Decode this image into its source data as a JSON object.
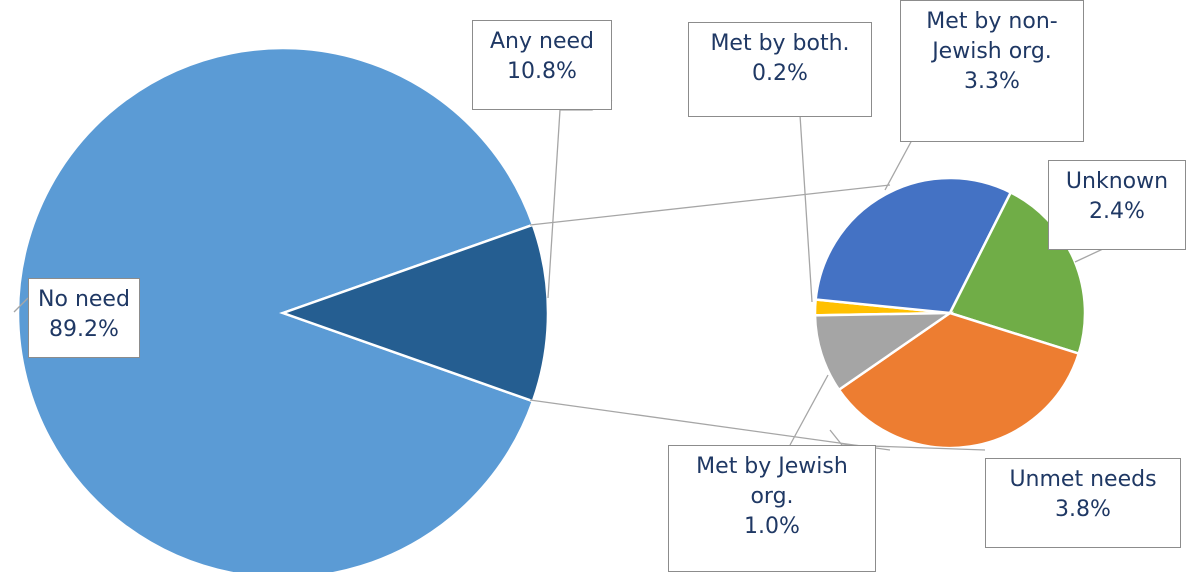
{
  "chart_data": [
    {
      "type": "pie",
      "categories": [
        "No need",
        "Any need"
      ],
      "values": [
        89.2,
        10.8
      ],
      "value_labels": [
        "89.2%",
        "10.8%"
      ],
      "colors": [
        "#5b9bd5",
        "#255e91"
      ]
    },
    {
      "type": "pie",
      "categories": [
        "Met by both.",
        "Met by non-Jewish org.",
        "Unknown",
        "Unmet needs",
        "Met by Jewish org."
      ],
      "values": [
        0.2,
        3.3,
        2.4,
        3.8,
        1.0
      ],
      "value_labels": [
        "0.2%",
        "3.3%",
        "2.4%",
        "3.8%",
        "1.0%"
      ],
      "colors": [
        "#ffc000",
        "#4472c4",
        "#70ad47",
        "#ed7d31",
        "#a5a5a5"
      ]
    }
  ]
}
